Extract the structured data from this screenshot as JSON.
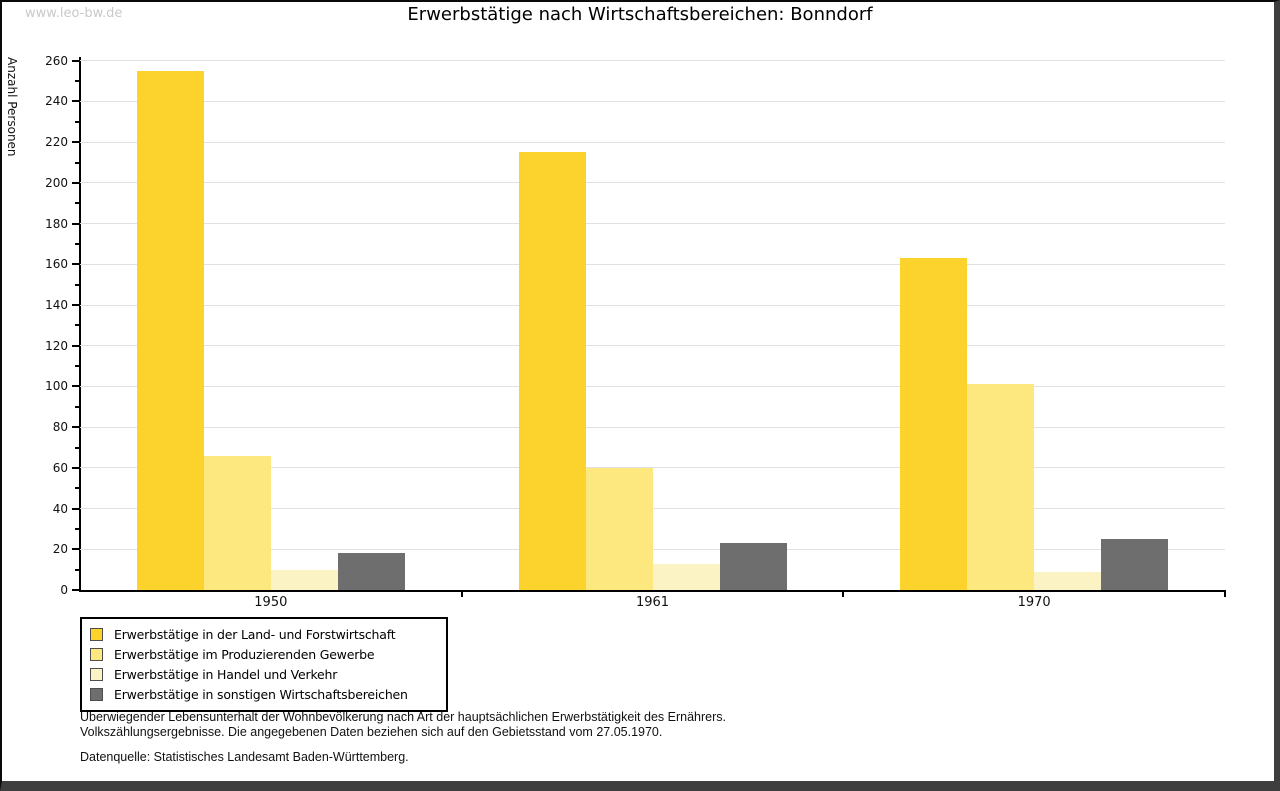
{
  "watermark": "www.leo-bw.de",
  "title": "Erwerbstätige nach Wirtschaftsbereichen: Bonndorf",
  "chart_data": {
    "type": "bar",
    "title": "Erwerbstätige nach Wirtschaftsbereichen: Bonndorf",
    "ylabel": "Anzahl Personen",
    "xlabel": "",
    "categories": [
      "1950",
      "1961",
      "1970"
    ],
    "series": [
      {
        "name": "Erwerbstätige in der Land- und Forstwirtschaft",
        "color": "#fcd22c",
        "values": [
          255,
          215,
          163
        ]
      },
      {
        "name": "Erwerbstätige im Produzierenden Gewerbe",
        "color": "#fce87f",
        "values": [
          66,
          60,
          101
        ]
      },
      {
        "name": "Erwerbstätige in Handel und Verkehr",
        "color": "#fbf3c4",
        "values": [
          10,
          13,
          9
        ]
      },
      {
        "name": "Erwerbstätige in sonstigen Wirtschaftsbereichen",
        "color": "#6e6e6e",
        "values": [
          18,
          23,
          25
        ]
      }
    ],
    "ylim": [
      0,
      260
    ],
    "ytick_major_step": 20,
    "ytick_minor_step": 10,
    "grid": true,
    "legend_position": "bottom-left"
  },
  "footnotes": {
    "line1": "Überwiegender Lebensunterhalt der Wohnbevölkerung nach Art der hauptsächlichen Erwerbstätigkeit des Ernährers.",
    "line2": "Volkszählungsergebnisse. Die angegebenen Daten beziehen sich auf den Gebietsstand vom 27.05.1970.",
    "source": "Datenquelle: Statistisches Landesamt Baden-Württemberg."
  }
}
